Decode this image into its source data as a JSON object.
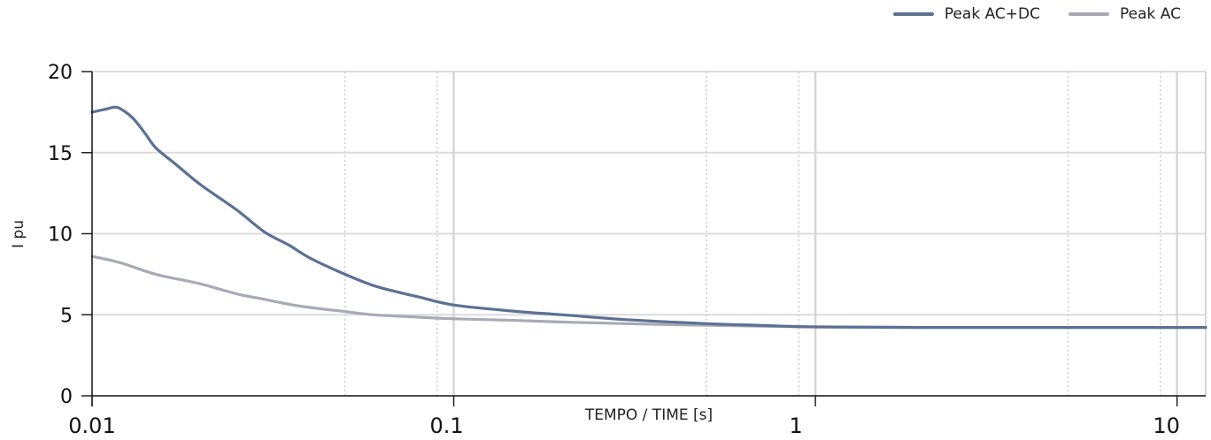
{
  "chart_data": {
    "type": "line",
    "xscale": "log",
    "xlabel": "TEMPO / TIME [s]",
    "ylabel": "I pu",
    "xlim": [
      0.01,
      12
    ],
    "ylim": [
      0,
      20
    ],
    "x_ticks": [
      0.01,
      0.1,
      1,
      10
    ],
    "x_tick_labels": [
      "0.01",
      "0.1",
      "1",
      "10"
    ],
    "y_ticks": [
      0,
      5,
      10,
      15,
      20
    ],
    "y_tick_labels": [
      "0",
      "5",
      "10",
      "15",
      "20"
    ],
    "grid": true,
    "legend_position": "top-right",
    "series": [
      {
        "name": "Peak AC+DC",
        "color": "#5b7194",
        "x": [
          0.01,
          0.011,
          0.0115,
          0.012,
          0.013,
          0.014,
          0.015,
          0.017,
          0.02,
          0.025,
          0.03,
          0.035,
          0.04,
          0.05,
          0.06,
          0.07,
          0.08,
          0.1,
          0.15,
          0.2,
          0.3,
          0.5,
          0.7,
          1,
          2,
          5,
          12
        ],
        "y": [
          17.5,
          17.7,
          17.8,
          17.7,
          17.1,
          16.2,
          15.3,
          14.3,
          13.0,
          11.5,
          10.1,
          9.3,
          8.5,
          7.5,
          6.8,
          6.4,
          6.1,
          5.6,
          5.2,
          5.0,
          4.7,
          4.45,
          4.35,
          4.25,
          4.22,
          4.22,
          4.22
        ]
      },
      {
        "name": "Peak AC",
        "color": "#a8aab6",
        "x": [
          0.01,
          0.012,
          0.015,
          0.02,
          0.025,
          0.03,
          0.035,
          0.04,
          0.05,
          0.06,
          0.08,
          0.1,
          0.15,
          0.2,
          0.3,
          0.5,
          0.7,
          1,
          2,
          5,
          12
        ],
        "y": [
          8.6,
          8.2,
          7.5,
          6.9,
          6.3,
          5.95,
          5.65,
          5.45,
          5.2,
          5.0,
          4.85,
          4.75,
          4.65,
          4.55,
          4.45,
          4.35,
          4.3,
          4.25,
          4.22,
          4.22,
          4.22
        ]
      }
    ]
  }
}
